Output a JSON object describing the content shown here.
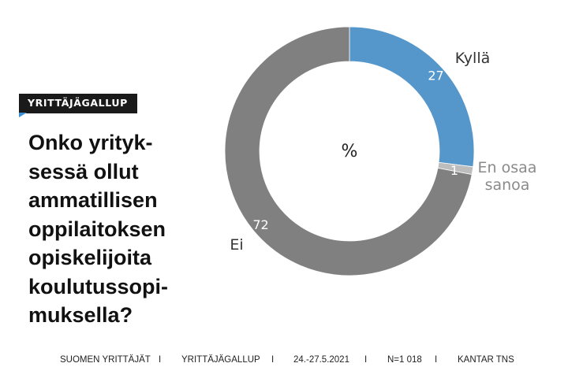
{
  "badge": {
    "label": "YRITTÄJÄGALLUP",
    "accent": "#3a8fd6"
  },
  "question": "Onko yrityk-\nsessä ollut\nammatillisen\noppilaitoksen\nopiskelijoita\nkoulutussopi-\nmuksella?",
  "chart_data": {
    "type": "pie",
    "style": "donut",
    "center_label": "%",
    "slices": [
      {
        "label": "Kyllä",
        "value": 27,
        "color": "#5596cb"
      },
      {
        "label": "En osaa\nsanoa",
        "value": 1,
        "color": "#bdbdbd"
      },
      {
        "label": "Ei",
        "value": 72,
        "color": "#808080"
      }
    ]
  },
  "footer": {
    "items": [
      "SUOMEN YRITTÄJÄT",
      "YRITTÄJÄGALLUP",
      "24.-27.5.2021",
      "N=1 018",
      "KANTAR TNS"
    ],
    "separator": "I"
  }
}
